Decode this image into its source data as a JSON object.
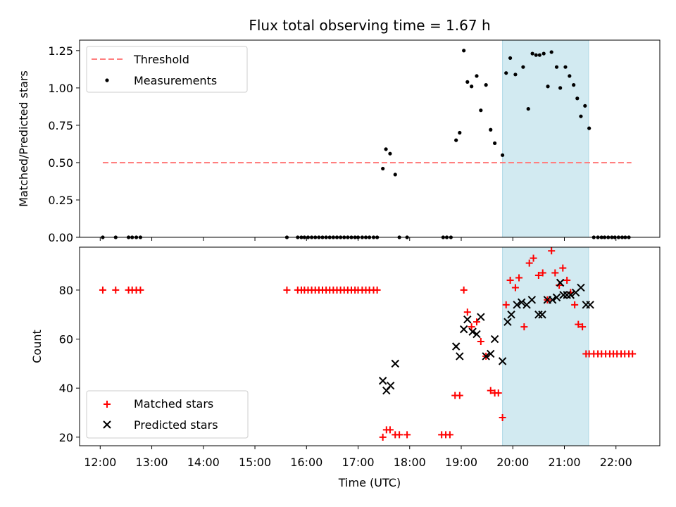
{
  "chart_data": {
    "type": "scatter",
    "title": "Flux total observing time = 1.67 h",
    "x_unit": "hours (UTC)",
    "xlabel": "Time (UTC)",
    "xlim": [
      11.6,
      22.85
    ],
    "x_ticks": [
      12,
      13,
      14,
      15,
      16,
      17,
      18,
      19,
      20,
      21,
      22
    ],
    "x_tick_labels": [
      "12:00",
      "13:00",
      "14:00",
      "15:00",
      "16:00",
      "17:00",
      "18:00",
      "19:00",
      "20:00",
      "21:00",
      "22:00"
    ],
    "highlight_span": [
      19.8,
      21.47
    ],
    "highlight_color": "#add8e6",
    "panels": [
      {
        "ylabel": "Matched/Predicted stars",
        "ylim": [
          0,
          1.32
        ],
        "y_ticks": [
          0,
          0.25,
          0.5,
          0.75,
          1.0,
          1.25
        ],
        "y_tick_labels": [
          "0.00",
          "0.25",
          "0.50",
          "0.75",
          "1.00",
          "1.25"
        ],
        "threshold": {
          "name": "Threshold",
          "value": 0.5,
          "x_range": [
            12.05,
            22.3
          ],
          "color": "#ff7f7f"
        },
        "series": [
          {
            "name": "Measurements",
            "marker": "dot",
            "color": "#000000",
            "x": [
              12.05,
              12.3,
              12.55,
              12.62,
              12.7,
              12.78,
              15.62,
              15.83,
              15.9,
              15.96,
              16.03,
              16.1,
              16.17,
              16.24,
              16.31,
              16.38,
              16.45,
              16.52,
              16.59,
              16.66,
              16.73,
              16.8,
              16.87,
              16.94,
              17.0,
              17.08,
              17.15,
              17.22,
              17.3,
              17.37,
              17.48,
              17.54,
              17.62,
              17.72,
              17.8,
              17.95,
              18.65,
              18.72,
              18.8,
              18.9,
              18.97,
              19.05,
              19.12,
              19.2,
              19.3,
              19.38,
              19.48,
              19.57,
              19.65,
              19.8,
              19.87,
              19.95,
              20.05,
              20.2,
              20.3,
              20.38,
              20.45,
              20.52,
              20.6,
              20.68,
              20.75,
              20.85,
              20.92,
              21.02,
              21.1,
              21.18,
              21.25,
              21.32,
              21.4,
              21.48,
              21.57,
              21.65,
              21.72,
              21.78,
              21.85,
              21.92,
              21.98,
              22.05,
              22.12,
              22.18,
              22.25
            ],
            "y": [
              0,
              0,
              0,
              0,
              0,
              0,
              0,
              0,
              0,
              0,
              0,
              0,
              0,
              0,
              0,
              0,
              0,
              0,
              0,
              0,
              0,
              0,
              0,
              0,
              0,
              0,
              0,
              0,
              0,
              0,
              0.46,
              0.59,
              0.56,
              0.42,
              0,
              0,
              0,
              0,
              0,
              0.65,
              0.7,
              1.25,
              1.04,
              1.01,
              1.08,
              0.85,
              1.02,
              0.72,
              0.63,
              0.55,
              1.1,
              1.2,
              1.09,
              1.14,
              0.86,
              1.23,
              1.22,
              1.22,
              1.23,
              1.01,
              1.24,
              1.14,
              1.0,
              1.14,
              1.08,
              1.02,
              0.93,
              0.81,
              0.88,
              0.73,
              0,
              0,
              0,
              0,
              0,
              0,
              0,
              0,
              0,
              0,
              0
            ]
          }
        ]
      },
      {
        "ylabel": "Count",
        "ylim": [
          16.5,
          97.5
        ],
        "y_ticks": [
          20,
          40,
          60,
          80
        ],
        "y_tick_labels": [
          "20",
          "40",
          "60",
          "80"
        ],
        "series": [
          {
            "name": "Matched stars",
            "marker": "plus",
            "color": "#ff0000",
            "x": [
              12.05,
              12.3,
              12.55,
              12.62,
              12.7,
              12.78,
              15.62,
              15.83,
              15.9,
              15.96,
              16.03,
              16.1,
              16.17,
              16.24,
              16.31,
              16.38,
              16.45,
              16.52,
              16.59,
              16.66,
              16.73,
              16.8,
              16.87,
              16.94,
              17.0,
              17.08,
              17.15,
              17.22,
              17.3,
              17.37,
              17.48,
              17.55,
              17.62,
              17.72,
              17.8,
              17.95,
              18.62,
              18.7,
              18.78,
              18.88,
              18.97,
              19.05,
              19.12,
              19.2,
              19.3,
              19.38,
              19.48,
              19.57,
              19.65,
              19.72,
              19.8,
              19.87,
              19.95,
              20.05,
              20.12,
              20.22,
              20.32,
              20.4,
              20.5,
              20.58,
              20.67,
              20.75,
              20.82,
              20.9,
              20.97,
              21.05,
              21.12,
              21.2,
              21.27,
              21.35,
              21.42,
              21.48,
              21.57,
              21.65,
              21.72,
              21.8,
              21.88,
              21.95,
              22.02,
              22.1,
              22.17,
              22.25,
              22.32
            ],
            "y": [
              80,
              80,
              80,
              80,
              80,
              80,
              80,
              80,
              80,
              80,
              80,
              80,
              80,
              80,
              80,
              80,
              80,
              80,
              80,
              80,
              80,
              80,
              80,
              80,
              80,
              80,
              80,
              80,
              80,
              80,
              20,
              23,
              23,
              21,
              21,
              21,
              21,
              21,
              21,
              37,
              37,
              80,
              71,
              65,
              67,
              59,
              53,
              39,
              38,
              38,
              28,
              74,
              84,
              81,
              85,
              65,
              91,
              93,
              86,
              87,
              76,
              96,
              87,
              82,
              89,
              84,
              79,
              74,
              66,
              65,
              54,
              54,
              54,
              54,
              54,
              54,
              54,
              54,
              54,
              54,
              54,
              54,
              54
            ]
          },
          {
            "name": "Predicted stars",
            "marker": "cross",
            "color": "#000000",
            "x": [
              17.48,
              17.55,
              17.63,
              17.72,
              18.9,
              18.97,
              19.05,
              19.12,
              19.22,
              19.3,
              19.38,
              19.48,
              19.57,
              19.65,
              19.8,
              19.9,
              19.97,
              20.08,
              20.17,
              20.27,
              20.37,
              20.5,
              20.57,
              20.67,
              20.77,
              20.85,
              20.92,
              20.98,
              21.05,
              21.12,
              21.22,
              21.32,
              21.42,
              21.5
            ],
            "y": [
              43,
              39,
              41,
              50,
              57,
              53,
              64,
              68,
              63,
              62,
              69,
              53,
              54,
              60,
              51,
              67,
              70,
              74,
              75,
              74,
              76,
              70,
              70,
              76,
              76,
              77,
              83,
              78,
              78,
              78,
              79,
              81,
              74,
              74
            ]
          }
        ]
      }
    ],
    "legends": [
      {
        "location": "upper-left",
        "entries": [
          "Threshold",
          "Measurements"
        ]
      },
      {
        "location": "lower-left",
        "entries": [
          "Matched stars",
          "Predicted stars"
        ]
      }
    ]
  }
}
